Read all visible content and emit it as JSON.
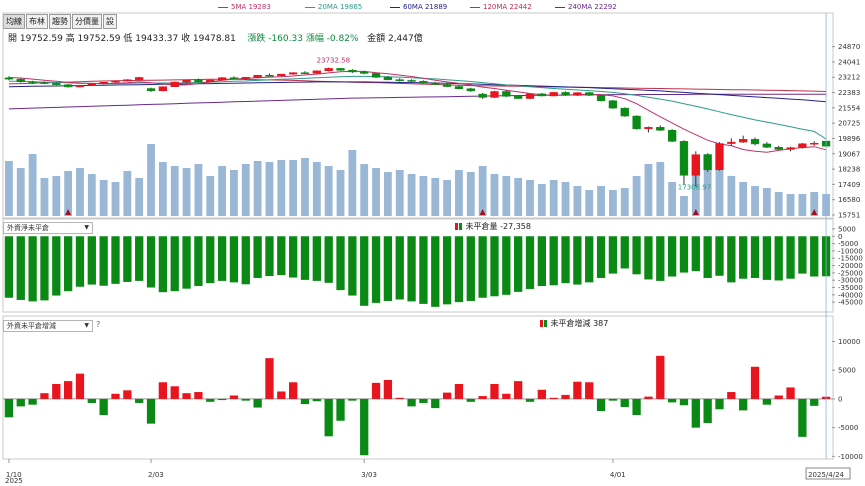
{
  "tabs": [
    "均線",
    "布林",
    "趨勢",
    "分價量",
    "設"
  ],
  "ma_legend": [
    {
      "label": "5MA 19283",
      "color": "#c0306a"
    },
    {
      "label": "20MA 19865",
      "color": "#2e9c8a"
    },
    {
      "label": "60MA 21889",
      "color": "#23248a"
    },
    {
      "label": "120MA 22442",
      "color": "#c0304a"
    },
    {
      "label": "240MA 22292",
      "color": "#6a2a8a"
    }
  ],
  "info": {
    "open": "開 19752.59",
    "high": "高 19752.59",
    "low": "低 19433.37",
    "close": "收 19478.81",
    "change": "漲跌 -160.33",
    "pct": "漲幅 -0.82%",
    "amount": "金額 2,447億"
  },
  "colors": {
    "up": "#e8141e",
    "down": "#0a8a14",
    "volume": "#9ab8d6",
    "net_pos": "#0a8a14"
  },
  "panel2": {
    "selector": "外資淨未平倉",
    "legend": "未平倉量 -27,358"
  },
  "panel3": {
    "selector": "外資未平倉增減",
    "help": "?",
    "legend": "未平倉增減 387"
  },
  "annotations": {
    "high": "23732.58",
    "low": "17306.97"
  },
  "x_labels": [
    "1/10",
    "2/03",
    "3/03",
    "4/01",
    "2025/4/24"
  ],
  "x_year": "2025",
  "chart_data": [
    {
      "type": "candlestick",
      "title": "",
      "ylim": [
        15751,
        25500
      ],
      "y_ticks": [
        "24870",
        "24041",
        "23212",
        "22383",
        "21554",
        "20725",
        "19896",
        "19067",
        "18238",
        "17409",
        "16580",
        "15751"
      ],
      "candles": [
        [
          23180,
          23260,
          23050,
          23110
        ],
        [
          23110,
          23150,
          22920,
          22970
        ],
        [
          22970,
          23020,
          22850,
          22920
        ],
        [
          22920,
          22990,
          22840,
          22880
        ],
        [
          22880,
          22930,
          22780,
          22810
        ],
        [
          22810,
          22850,
          22650,
          22690
        ],
        [
          22690,
          22790,
          22660,
          22770
        ],
        [
          22770,
          22880,
          22740,
          22860
        ],
        [
          22860,
          22960,
          22830,
          22940
        ],
        [
          22940,
          23030,
          22900,
          23010
        ],
        [
          23010,
          23100,
          22980,
          23080
        ],
        [
          23080,
          23240,
          23050,
          23200
        ],
        [
          22600,
          22650,
          22420,
          22480
        ],
        [
          22480,
          22720,
          22450,
          22700
        ],
        [
          22700,
          22980,
          22680,
          22950
        ],
        [
          22950,
          23080,
          22900,
          23060
        ],
        [
          23060,
          23140,
          22930,
          22960
        ],
        [
          22960,
          23080,
          22940,
          23060
        ],
        [
          23060,
          23220,
          23030,
          23190
        ],
        [
          23190,
          23260,
          23120,
          23140
        ],
        [
          23140,
          23230,
          23080,
          23210
        ],
        [
          23210,
          23340,
          23180,
          23320
        ],
        [
          23320,
          23420,
          23270,
          23290
        ],
        [
          23290,
          23390,
          23250,
          23380
        ],
        [
          23380,
          23480,
          23340,
          23460
        ],
        [
          23460,
          23540,
          23400,
          23430
        ],
        [
          23430,
          23580,
          23400,
          23560
        ],
        [
          23560,
          23733,
          23520,
          23690
        ],
        [
          23690,
          23700,
          23560,
          23590
        ],
        [
          23590,
          23650,
          23440,
          23500
        ],
        [
          23500,
          23560,
          23380,
          23420
        ],
        [
          23420,
          23460,
          23170,
          23210
        ],
        [
          23210,
          23280,
          23050,
          23080
        ],
        [
          23080,
          23160,
          22980,
          23040
        ],
        [
          23040,
          23100,
          22950,
          22990
        ],
        [
          22990,
          23040,
          22870,
          22900
        ],
        [
          22900,
          22960,
          22790,
          22820
        ],
        [
          22820,
          22880,
          22680,
          22710
        ],
        [
          22710,
          22760,
          22560,
          22590
        ],
        [
          22590,
          22640,
          22430,
          22470
        ],
        [
          22300,
          22360,
          22040,
          22120
        ],
        [
          22120,
          22480,
          22080,
          22440
        ],
        [
          22440,
          22500,
          22140,
          22180
        ],
        [
          22180,
          22240,
          22030,
          22060
        ],
        [
          22060,
          22340,
          22030,
          22310
        ],
        [
          22310,
          22360,
          22170,
          22200
        ],
        [
          22200,
          22420,
          22170,
          22390
        ],
        [
          22390,
          22450,
          22200,
          22230
        ],
        [
          22230,
          22400,
          22200,
          22380
        ],
        [
          22380,
          22420,
          22200,
          22230
        ],
        [
          22230,
          22260,
          21900,
          21940
        ],
        [
          21940,
          21980,
          21500,
          21540
        ],
        [
          21540,
          21580,
          21070,
          21110
        ],
        [
          21110,
          21150,
          20380,
          20420
        ],
        [
          20420,
          20540,
          20220,
          20500
        ],
        [
          20500,
          20600,
          20300,
          20340
        ],
        [
          20340,
          20400,
          19700,
          19740
        ],
        [
          19740,
          19800,
          17400,
          17900
        ],
        [
          17900,
          19200,
          17307,
          19020
        ],
        [
          19020,
          19100,
          18100,
          18200
        ],
        [
          18200,
          19700,
          18150,
          19620
        ],
        [
          19620,
          19900,
          19500,
          19700
        ],
        [
          19700,
          20050,
          19650,
          19850
        ],
        [
          19850,
          19950,
          19520,
          19600
        ],
        [
          19600,
          19700,
          19380,
          19420
        ],
        [
          19420,
          19500,
          19280,
          19300
        ],
        [
          19300,
          19450,
          19200,
          19400
        ],
        [
          19400,
          19650,
          19350,
          19610
        ],
        [
          19610,
          19750,
          19500,
          19639
        ],
        [
          19753,
          19753,
          19433,
          19479
        ]
      ],
      "volumes": [
        55,
        48,
        62,
        38,
        40,
        45,
        48,
        42,
        36,
        34,
        45,
        38,
        72,
        54,
        50,
        48,
        52,
        40,
        50,
        46,
        52,
        55,
        54,
        56,
        56,
        58,
        54,
        50,
        46,
        66,
        52,
        48,
        44,
        46,
        42,
        40,
        38,
        36,
        46,
        44,
        50,
        42,
        40,
        38,
        36,
        32,
        36,
        34,
        30,
        26,
        30,
        26,
        28,
        40,
        52,
        54,
        34,
        20,
        48,
        62,
        50,
        40,
        34,
        30,
        28,
        24,
        22,
        22,
        24,
        22
      ],
      "volume_ylim": [
        0,
        80
      ],
      "markers": [
        5,
        40,
        58,
        68
      ],
      "ma5": [
        23200,
        23170,
        23110,
        23050,
        22990,
        22930,
        22890,
        22880,
        22870,
        22880,
        22910,
        22970,
        22910,
        22850,
        22790,
        22800,
        22870,
        22960,
        23050,
        23110,
        23150,
        23190,
        23220,
        23240,
        23280,
        23340,
        23380,
        23450,
        23510,
        23540,
        23530,
        23460,
        23400,
        23330,
        23250,
        23160,
        23050,
        22960,
        22880,
        22790,
        22680,
        22600,
        22510,
        22420,
        22330,
        22260,
        22240,
        22250,
        22270,
        22290,
        22260,
        22200,
        22050,
        21780,
        21420,
        21070,
        20740,
        20400,
        20100,
        19800,
        19600,
        19500,
        19300,
        19200,
        19150,
        19250,
        19350,
        19400,
        19450,
        19283
      ],
      "ma20": [
        23000,
        22990,
        22970,
        22950,
        22930,
        22910,
        22890,
        22880,
        22870,
        22870,
        22880,
        22900,
        22900,
        22900,
        22900,
        22910,
        22930,
        22950,
        22970,
        22990,
        23010,
        23040,
        23070,
        23100,
        23120,
        23150,
        23180,
        23210,
        23240,
        23260,
        23260,
        23250,
        23240,
        23220,
        23190,
        23150,
        23120,
        23080,
        23030,
        22980,
        22920,
        22860,
        22800,
        22750,
        22700,
        22650,
        22600,
        22560,
        22520,
        22490,
        22440,
        22390,
        22320,
        22230,
        22130,
        22030,
        21920,
        21780,
        21640,
        21500,
        21340,
        21190,
        21040,
        20900,
        20780,
        20660,
        20530,
        20400,
        20280,
        19865
      ],
      "ma60": [
        22700,
        22710,
        22720,
        22730,
        22740,
        22750,
        22760,
        22770,
        22780,
        22790,
        22800,
        22810,
        22820,
        22830,
        22840,
        22850,
        22860,
        22870,
        22880,
        22890,
        22900,
        22910,
        22920,
        22930,
        22940,
        22950,
        22960,
        22960,
        22960,
        22960,
        22960,
        22950,
        22940,
        22930,
        22920,
        22910,
        22900,
        22890,
        22870,
        22850,
        22830,
        22810,
        22790,
        22770,
        22750,
        22730,
        22710,
        22690,
        22670,
        22650,
        22620,
        22590,
        22560,
        22530,
        22500,
        22470,
        22430,
        22390,
        22350,
        22310,
        22270,
        22230,
        22190,
        22150,
        22110,
        22070,
        22030,
        21990,
        21940,
        21889
      ],
      "ma120": [
        22850,
        22870,
        22890,
        22910,
        22930,
        22950,
        22970,
        22990,
        23010,
        23020,
        23030,
        23040,
        23050,
        23060,
        23070,
        23080,
        23090,
        23100,
        23100,
        23100,
        23090,
        23080,
        23070,
        23060,
        23040,
        23020,
        23000,
        22980,
        22960,
        22940,
        22930,
        22920,
        22900,
        22880,
        22860,
        22840,
        22820,
        22800,
        22780,
        22760,
        22750,
        22740,
        22730,
        22720,
        22710,
        22700,
        22690,
        22680,
        22670,
        22660,
        22650,
        22640,
        22630,
        22620,
        22610,
        22600,
        22590,
        22580,
        22570,
        22560,
        22550,
        22540,
        22530,
        22520,
        22510,
        22500,
        22490,
        22470,
        22460,
        22442
      ],
      "ma240": [
        21500,
        21520,
        21540,
        21560,
        21580,
        21600,
        21620,
        21640,
        21660,
        21680,
        21700,
        21720,
        21740,
        21760,
        21780,
        21800,
        21820,
        21840,
        21860,
        21880,
        21900,
        21920,
        21940,
        21960,
        21980,
        22000,
        22020,
        22040,
        22060,
        22080,
        22090,
        22100,
        22110,
        22120,
        22130,
        22140,
        22150,
        22160,
        22170,
        22180,
        22190,
        22200,
        22210,
        22220,
        22230,
        22240,
        22240,
        22250,
        22250,
        22260,
        22260,
        22270,
        22270,
        22270,
        22280,
        22280,
        22280,
        22280,
        22290,
        22290,
        22290,
        22290,
        22290,
        22290,
        22290,
        22290,
        22290,
        22290,
        22290,
        22292
      ]
    },
    {
      "type": "bar",
      "title": "外資淨未平倉",
      "ylim": [
        -49000,
        7000
      ],
      "y_ticks": [
        "5000",
        "0",
        "-5000",
        "-10000",
        "-15000",
        "-20000",
        "-25000",
        "-30000",
        "-35000",
        "-40000",
        "-45000"
      ],
      "values": [
        -42000,
        -43500,
        -44500,
        -43800,
        -40500,
        -37500,
        -34500,
        -33000,
        -33800,
        -32500,
        -31200,
        -30500,
        -35000,
        -38200,
        -37500,
        -35800,
        -34000,
        -32000,
        -30500,
        -31500,
        -32800,
        -28500,
        -27200,
        -26500,
        -28200,
        -29800,
        -30500,
        -31800,
        -36800,
        -40500,
        -47500,
        -45500,
        -44200,
        -43200,
        -44500,
        -46200,
        -48200,
        -46500,
        -45000,
        -44200,
        -42000,
        -41000,
        -40000,
        -38000,
        -36000,
        -34000,
        -33500,
        -32000,
        -33000,
        -31500,
        -28500,
        -25500,
        -22000,
        -26000,
        -29500,
        -30500,
        -27500,
        -24800,
        -23800,
        -28500,
        -27000,
        -31500,
        -29000,
        -28500,
        -29800,
        -30200,
        -29000,
        -25500,
        -27500,
        -27358
      ]
    },
    {
      "type": "bar",
      "title": "外資未平倉增減",
      "ylim": [
        -11500,
        12000
      ],
      "y_ticks": [
        "10000",
        "5000",
        "0",
        "-5000",
        "-10000"
      ],
      "values": [
        -3200,
        -1300,
        -1000,
        1000,
        2600,
        3100,
        4400,
        -700,
        -2800,
        900,
        1500,
        -700,
        -4300,
        2900,
        2200,
        1000,
        1200,
        -500,
        -200,
        600,
        -300,
        -1500,
        7100,
        1300,
        2900,
        -900,
        -400,
        -6500,
        -3800,
        -300,
        -9800,
        2800,
        3300,
        200,
        -1300,
        -700,
        -1600,
        1100,
        2600,
        -500,
        500,
        2600,
        900,
        3100,
        -500,
        1600,
        200,
        700,
        3000,
        2900,
        -2100,
        -300,
        -1400,
        -2800,
        400,
        7500,
        -600,
        -1100,
        -5000,
        -4200,
        -1800,
        1200,
        -2000,
        5600,
        -1000,
        600,
        2000,
        -6600,
        -1200,
        387
      ]
    }
  ]
}
